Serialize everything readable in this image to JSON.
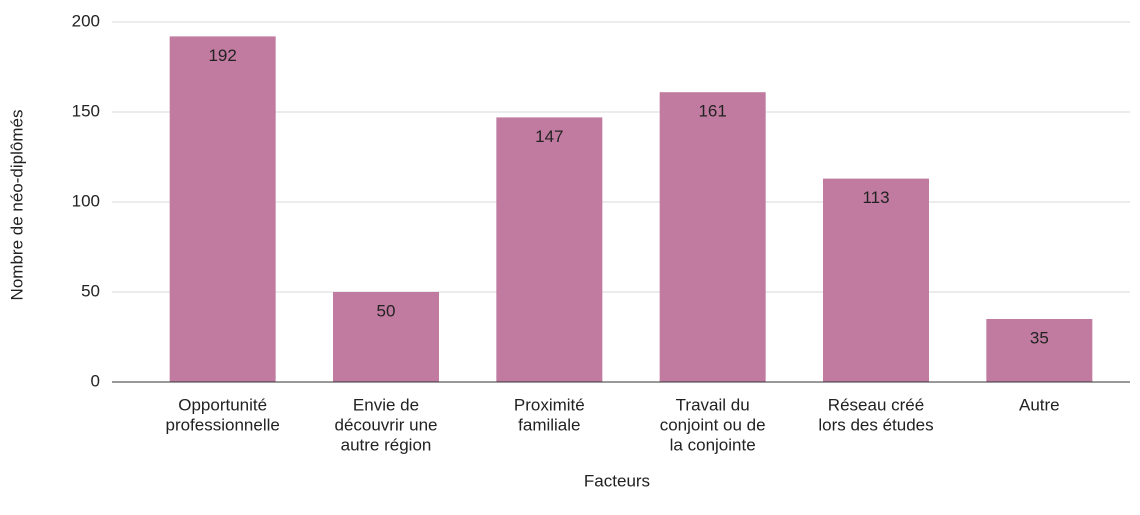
{
  "chart_data": {
    "type": "bar",
    "x_label": "Facteurs",
    "y_label": "Nombre de néo-diplômés",
    "categories": [
      [
        "Opportunité",
        "professionnelle"
      ],
      [
        "Envie de",
        "découvrir une",
        "autre région"
      ],
      [
        "Proximité",
        "familiale"
      ],
      [
        "Travail du",
        "conjoint ou de",
        "la conjointe"
      ],
      [
        "Réseau créé",
        "lors des études"
      ],
      [
        "Autre"
      ]
    ],
    "values": [
      192,
      50,
      147,
      161,
      113,
      35
    ],
    "color": "#c27ba0",
    "ylim": [
      0,
      200
    ],
    "yticks": [
      0,
      50,
      100,
      150,
      200
    ],
    "grid": true
  }
}
